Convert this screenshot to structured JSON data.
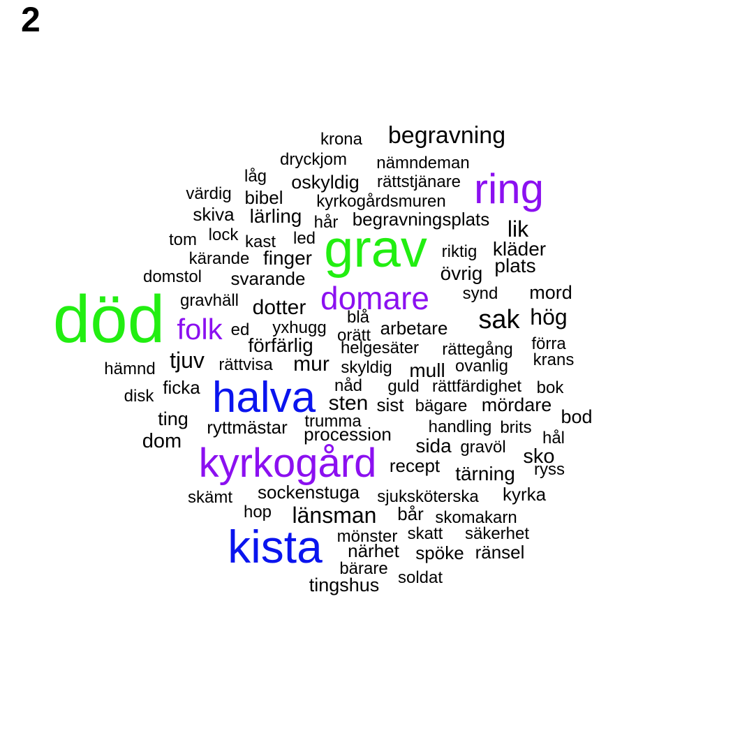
{
  "panel_label": "2",
  "colors": {
    "green": "#22ee11",
    "purple": "#8b10f0",
    "blue": "#0a14ee",
    "black": "#000000"
  },
  "words": [
    {
      "text": "död",
      "color": "green"
    },
    {
      "text": "grav",
      "color": "green"
    },
    {
      "text": "kista",
      "color": "blue"
    },
    {
      "text": "halva",
      "color": "blue"
    },
    {
      "text": "kyrkogård",
      "color": "purple"
    },
    {
      "text": "ring",
      "color": "purple"
    },
    {
      "text": "domare",
      "color": "purple"
    },
    {
      "text": "folk",
      "color": "purple"
    },
    {
      "text": "begravning",
      "color": "black"
    },
    {
      "text": "krona",
      "color": "black"
    },
    {
      "text": "dryckjom",
      "color": "black"
    },
    {
      "text": "nämndeman",
      "color": "black"
    },
    {
      "text": "låg",
      "color": "black"
    },
    {
      "text": "oskyldig",
      "color": "black"
    },
    {
      "text": "rättstjänare",
      "color": "black"
    },
    {
      "text": "värdig",
      "color": "black"
    },
    {
      "text": "bibel",
      "color": "black"
    },
    {
      "text": "kyrkogårdsmuren",
      "color": "black"
    },
    {
      "text": "skiva",
      "color": "black"
    },
    {
      "text": "lärling",
      "color": "black"
    },
    {
      "text": "hår",
      "color": "black"
    },
    {
      "text": "begravningsplats",
      "color": "black"
    },
    {
      "text": "lik",
      "color": "black"
    },
    {
      "text": "tom",
      "color": "black"
    },
    {
      "text": "lock",
      "color": "black"
    },
    {
      "text": "kast",
      "color": "black"
    },
    {
      "text": "led",
      "color": "black"
    },
    {
      "text": "riktig",
      "color": "black"
    },
    {
      "text": "kläder",
      "color": "black"
    },
    {
      "text": "kärande",
      "color": "black"
    },
    {
      "text": "finger",
      "color": "black"
    },
    {
      "text": "plats",
      "color": "black"
    },
    {
      "text": "övrig",
      "color": "black"
    },
    {
      "text": "domstol",
      "color": "black"
    },
    {
      "text": "svarande",
      "color": "black"
    },
    {
      "text": "synd",
      "color": "black"
    },
    {
      "text": "mord",
      "color": "black"
    },
    {
      "text": "gravhäll",
      "color": "black"
    },
    {
      "text": "dotter",
      "color": "black"
    },
    {
      "text": "blå",
      "color": "black"
    },
    {
      "text": "sak",
      "color": "black"
    },
    {
      "text": "hög",
      "color": "black"
    },
    {
      "text": "ed",
      "color": "black"
    },
    {
      "text": "yxhugg",
      "color": "black"
    },
    {
      "text": "orätt",
      "color": "black"
    },
    {
      "text": "arbetare",
      "color": "black"
    },
    {
      "text": "förfärlig",
      "color": "black"
    },
    {
      "text": "helgesäter",
      "color": "black"
    },
    {
      "text": "rättegång",
      "color": "black"
    },
    {
      "text": "förra",
      "color": "black"
    },
    {
      "text": "tjuv",
      "color": "black"
    },
    {
      "text": "krans",
      "color": "black"
    },
    {
      "text": "hämnd",
      "color": "black"
    },
    {
      "text": "rättvisa",
      "color": "black"
    },
    {
      "text": "mur",
      "color": "black"
    },
    {
      "text": "skyldig",
      "color": "black"
    },
    {
      "text": "mull",
      "color": "black"
    },
    {
      "text": "ovanlig",
      "color": "black"
    },
    {
      "text": "nåd",
      "color": "black"
    },
    {
      "text": "guld",
      "color": "black"
    },
    {
      "text": "rättfärdighet",
      "color": "black"
    },
    {
      "text": "bok",
      "color": "black"
    },
    {
      "text": "ficka",
      "color": "black"
    },
    {
      "text": "disk",
      "color": "black"
    },
    {
      "text": "sten",
      "color": "black"
    },
    {
      "text": "sist",
      "color": "black"
    },
    {
      "text": "bägare",
      "color": "black"
    },
    {
      "text": "mördare",
      "color": "black"
    },
    {
      "text": "bod",
      "color": "black"
    },
    {
      "text": "ting",
      "color": "black"
    },
    {
      "text": "trumma",
      "color": "black"
    },
    {
      "text": "ryttmästar",
      "color": "black"
    },
    {
      "text": "handling",
      "color": "black"
    },
    {
      "text": "brits",
      "color": "black"
    },
    {
      "text": "procession",
      "color": "black"
    },
    {
      "text": "hål",
      "color": "black"
    },
    {
      "text": "dom",
      "color": "black"
    },
    {
      "text": "sida",
      "color": "black"
    },
    {
      "text": "gravöl",
      "color": "black"
    },
    {
      "text": "sko",
      "color": "black"
    },
    {
      "text": "recept",
      "color": "black"
    },
    {
      "text": "ryss",
      "color": "black"
    },
    {
      "text": "tärning",
      "color": "black"
    },
    {
      "text": "sockenstuga",
      "color": "black"
    },
    {
      "text": "skämt",
      "color": "black"
    },
    {
      "text": "sjuksköterska",
      "color": "black"
    },
    {
      "text": "kyrka",
      "color": "black"
    },
    {
      "text": "hop",
      "color": "black"
    },
    {
      "text": "länsman",
      "color": "black"
    },
    {
      "text": "bår",
      "color": "black"
    },
    {
      "text": "skomakarn",
      "color": "black"
    },
    {
      "text": "mönster",
      "color": "black"
    },
    {
      "text": "skatt",
      "color": "black"
    },
    {
      "text": "säkerhet",
      "color": "black"
    },
    {
      "text": "närhet",
      "color": "black"
    },
    {
      "text": "spöke",
      "color": "black"
    },
    {
      "text": "ränsel",
      "color": "black"
    },
    {
      "text": "bärare",
      "color": "black"
    },
    {
      "text": "soldat",
      "color": "black"
    },
    {
      "text": "tingshus",
      "color": "black"
    }
  ]
}
